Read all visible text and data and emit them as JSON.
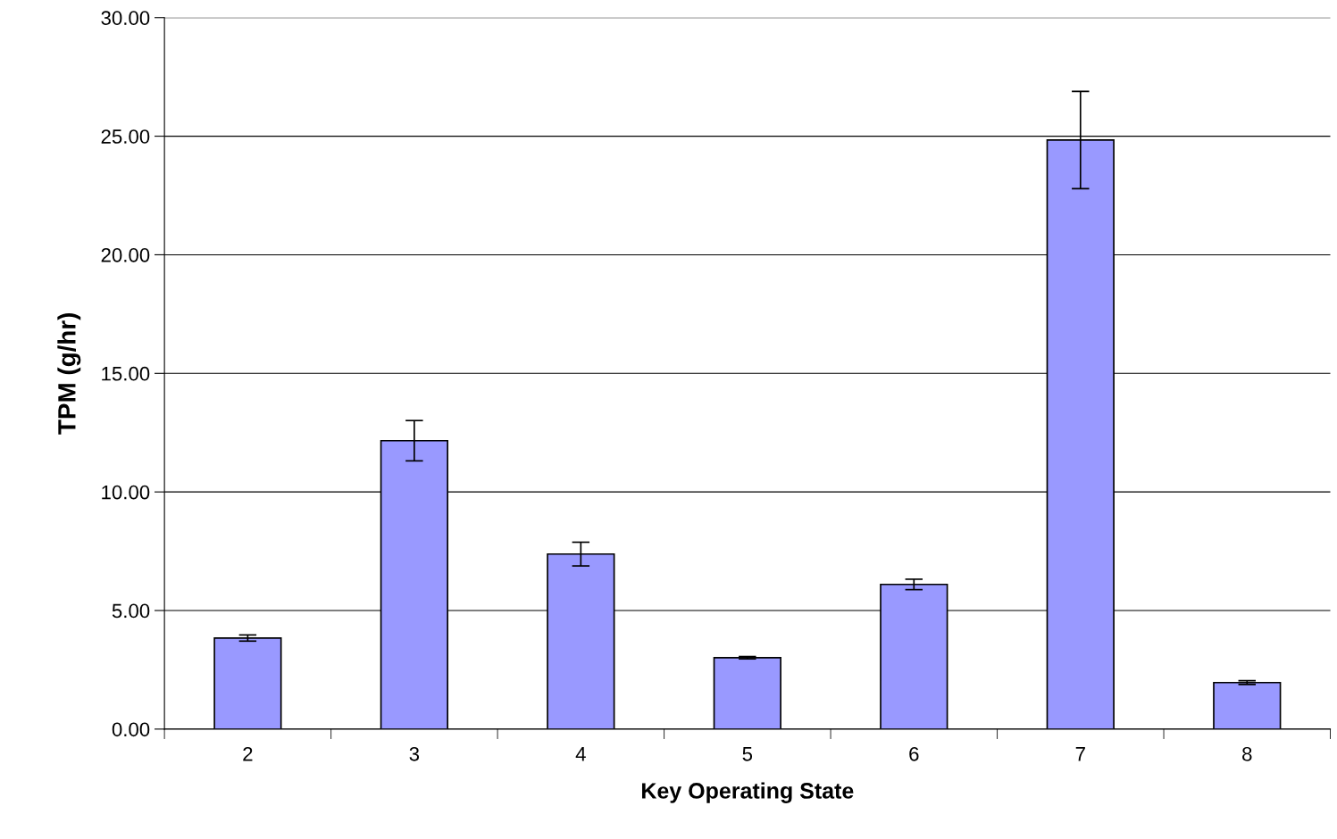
{
  "chart_data": {
    "type": "bar",
    "xlabel": "Key Operating State",
    "ylabel": "TPM (g/hr)",
    "categories": [
      "2",
      "3",
      "4",
      "5",
      "6",
      "7",
      "8"
    ],
    "values": [
      3.84,
      12.16,
      7.38,
      3.01,
      6.1,
      24.84,
      1.96
    ],
    "errors": [
      0.13,
      0.85,
      0.5,
      0.05,
      0.22,
      2.05,
      0.08
    ],
    "color": "#9999ff",
    "ylim": [
      0,
      30
    ],
    "yticks": [
      {
        "value": 0,
        "label": "0.00"
      },
      {
        "value": 5,
        "label": "5.00"
      },
      {
        "value": 10,
        "label": "10.00"
      },
      {
        "value": 15,
        "label": "15.00"
      },
      {
        "value": 20,
        "label": "20.00"
      },
      {
        "value": 25,
        "label": "25.00"
      },
      {
        "value": 30,
        "label": "30.00"
      }
    ],
    "grid": "y"
  }
}
